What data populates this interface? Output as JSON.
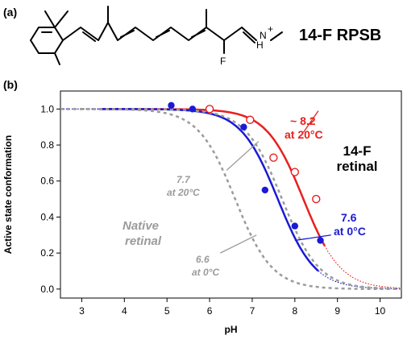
{
  "panel_a": {
    "label": "(a)",
    "compound_name": "14-F RPSB",
    "atoms": {
      "fluorine": "F",
      "iminium_h": "H",
      "iminium_n": "N",
      "charge": "+"
    }
  },
  "panel_b": {
    "label": "(b)"
  },
  "chart_data": {
    "type": "line",
    "xlabel": "pH",
    "ylabel": "Active state conformation",
    "xlim": [
      2.5,
      10.5
    ],
    "ylim": [
      -0.05,
      1.1
    ],
    "xticks": [
      "3",
      "4",
      "5",
      "6",
      "7",
      "8",
      "9",
      "10"
    ],
    "yticks": [
      "0.0",
      "0.2",
      "0.4",
      "0.6",
      "0.8",
      "1.0"
    ],
    "grid": false,
    "series": [
      {
        "pka": 8.2,
        "color": "#e8201e",
        "style": "solid",
        "solid_range": [
          3.4,
          8.7
        ],
        "dotted_range": [
          8.7,
          10.5
        ],
        "flat_lead_in": [
          2.5,
          3.4
        ]
      },
      {
        "pka": 7.6,
        "color": "#1a1ad6",
        "style": "solid",
        "solid_range": [
          3.4,
          8.55
        ],
        "dotted_range": [
          8.55,
          10.5
        ],
        "flat_lead_in": [
          2.5,
          3.4
        ]
      },
      {
        "pka": 7.7,
        "color": "#9b9b9b",
        "style": "dashed",
        "range": [
          2.5,
          10.5
        ]
      },
      {
        "pka": 6.6,
        "color": "#9b9b9b",
        "style": "dashed",
        "range": [
          2.5,
          10.5
        ]
      }
    ],
    "points_open_red": [
      [
        6.0,
        1.0
      ],
      [
        6.95,
        0.94
      ],
      [
        7.5,
        0.73
      ],
      [
        8.0,
        0.65
      ],
      [
        8.5,
        0.5
      ]
    ],
    "points_filled_blue": [
      [
        5.1,
        1.02
      ],
      [
        5.6,
        1.0
      ],
      [
        6.8,
        0.9
      ],
      [
        7.3,
        0.55
      ],
      [
        8.0,
        0.35
      ],
      [
        8.6,
        0.27
      ]
    ],
    "annotations": {
      "compound": [
        "14-F",
        "retinal"
      ],
      "red": [
        "~ 8.2",
        "at 20°C"
      ],
      "blue": [
        "7.6",
        "at 0°C"
      ],
      "gray_high": [
        "7.7",
        "at 20°C"
      ],
      "gray_low": [
        "6.6",
        "at 0°C"
      ],
      "native": [
        "Native",
        "retinal"
      ]
    }
  }
}
